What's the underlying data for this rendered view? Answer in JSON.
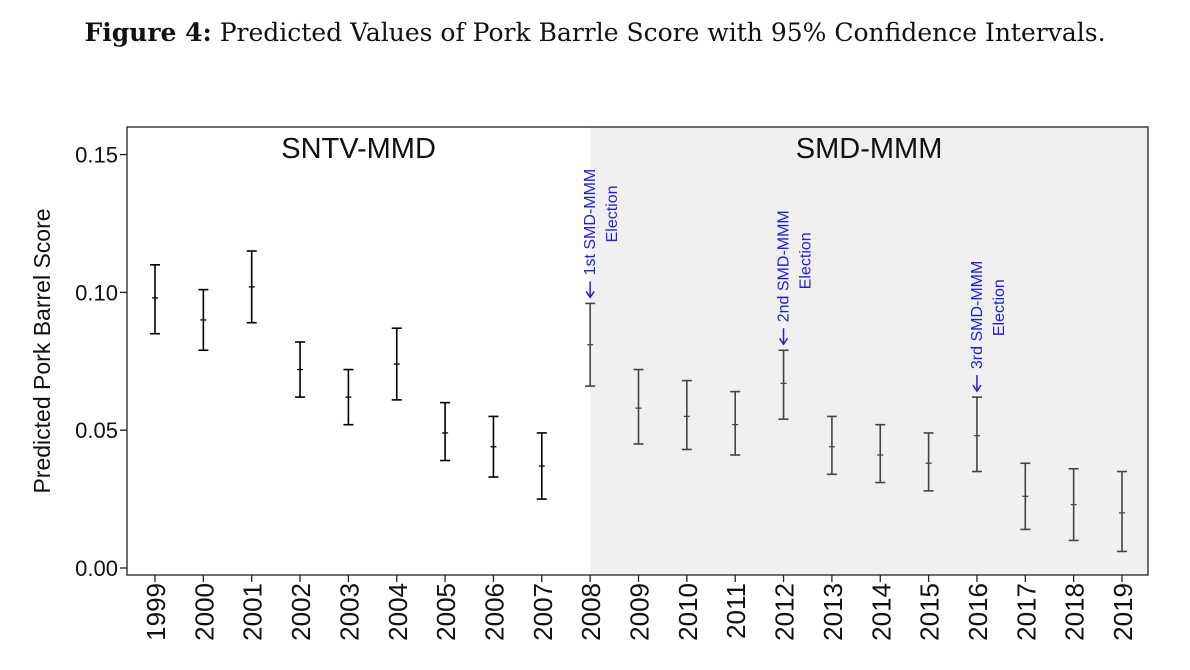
{
  "figure": {
    "label": "Figure 4:",
    "title": "Predicted Values of Pork Barrle Score with 95% Confidence Intervals."
  },
  "chart_data": {
    "type": "errorbar",
    "ylabel": "Predicted Pork Barrel Score",
    "ylim": [
      0.0,
      0.16
    ],
    "yticks": [
      "0.00",
      "0.05",
      "0.10",
      "0.15"
    ],
    "ytick_values": [
      0.0,
      0.05,
      0.1,
      0.15
    ],
    "regions": [
      {
        "label": "SNTV-MMD",
        "from": "1999",
        "to": "2008",
        "shade": "#ffffff"
      },
      {
        "label": "SMD-MMM",
        "from": "2008",
        "to": "2019",
        "shade": "#f0f0f0"
      }
    ],
    "categories": [
      "1999",
      "2000",
      "2001",
      "2002",
      "2003",
      "2004",
      "2005",
      "2006",
      "2007",
      "2008",
      "2009",
      "2010",
      "2011",
      "2012",
      "2013",
      "2014",
      "2015",
      "2016",
      "2017",
      "2018",
      "2019"
    ],
    "estimate": [
      0.098,
      0.09,
      0.102,
      0.072,
      0.062,
      0.074,
      0.049,
      0.044,
      0.037,
      0.081,
      0.058,
      0.055,
      0.052,
      0.067,
      0.044,
      0.041,
      0.038,
      0.048,
      0.026,
      0.023,
      0.02
    ],
    "lower": [
      0.085,
      0.079,
      0.089,
      0.062,
      0.052,
      0.061,
      0.039,
      0.033,
      0.025,
      0.066,
      0.045,
      0.043,
      0.041,
      0.054,
      0.034,
      0.031,
      0.028,
      0.035,
      0.014,
      0.01,
      0.006
    ],
    "upper": [
      0.11,
      0.101,
      0.115,
      0.082,
      0.072,
      0.087,
      0.06,
      0.055,
      0.049,
      0.096,
      0.072,
      0.068,
      0.064,
      0.079,
      0.055,
      0.052,
      0.049,
      0.062,
      0.038,
      0.036,
      0.035
    ],
    "annotations": [
      {
        "year": "2008",
        "line1": "1st SMD-MMM",
        "line2": "Election"
      },
      {
        "year": "2012",
        "line1": "2nd SMD-MMM",
        "line2": "Election"
      },
      {
        "year": "2016",
        "line1": "3rd SMD-MMM",
        "line2": "Election"
      }
    ],
    "colors": {
      "first_period": "#000000",
      "second_period": "#444444",
      "annotation": "#1f1fd6",
      "shade": "#f0f0f0"
    },
    "grid": false
  }
}
